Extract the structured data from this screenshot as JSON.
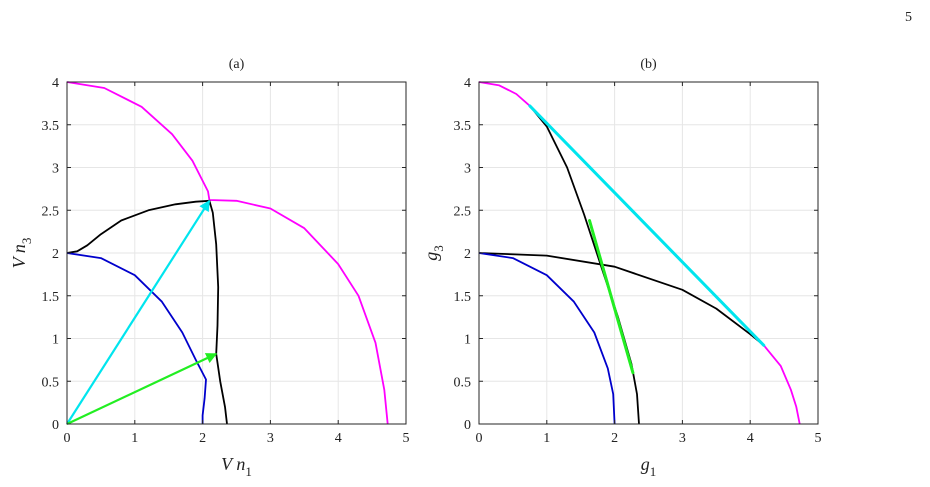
{
  "page_number": "5",
  "colors": {
    "magenta": "#ff00ff",
    "black": "#000000",
    "blue": "#0000cc",
    "cyan": "#00e5ee",
    "green": "#22ee22",
    "grid": "#e6e6e6"
  },
  "chart_data": [
    {
      "type": "line",
      "title": "(a)",
      "xlabel": {
        "main": "V n",
        "sub": "1"
      },
      "ylabel": {
        "main": "V n",
        "sub": "3"
      },
      "xlim": [
        0,
        5
      ],
      "ylim": [
        0,
        4
      ],
      "xticks": [
        0,
        1,
        2,
        3,
        4,
        5
      ],
      "yticks": [
        0,
        0.5,
        1,
        1.5,
        2,
        2.5,
        3,
        3.5,
        4
      ],
      "grid": true,
      "series": [
        {
          "color": "magenta",
          "points": [
            [
              0,
              4
            ],
            [
              0.55,
              3.93
            ],
            [
              1.1,
              3.71
            ],
            [
              1.55,
              3.39
            ],
            [
              1.85,
              3.08
            ],
            [
              2.08,
              2.72
            ],
            [
              2.1,
              2.62
            ],
            [
              2.5,
              2.61
            ],
            [
              3.0,
              2.52
            ],
            [
              3.5,
              2.29
            ],
            [
              4.0,
              1.87
            ],
            [
              4.3,
              1.5
            ],
            [
              4.55,
              0.95
            ],
            [
              4.68,
              0.4
            ],
            [
              4.73,
              0
            ]
          ]
        },
        {
          "color": "black",
          "points": [
            [
              0,
              2
            ],
            [
              0.15,
              2.02
            ],
            [
              0.3,
              2.09
            ],
            [
              0.5,
              2.22
            ],
            [
              0.8,
              2.38
            ],
            [
              1.2,
              2.5
            ],
            [
              1.6,
              2.57
            ],
            [
              1.9,
              2.6
            ],
            [
              2.1,
              2.61
            ],
            [
              2.15,
              2.47
            ],
            [
              2.2,
              2.1
            ],
            [
              2.23,
              1.6
            ],
            [
              2.22,
              1.15
            ],
            [
              2.2,
              0.82
            ],
            [
              2.26,
              0.5
            ],
            [
              2.33,
              0.2
            ],
            [
              2.36,
              0
            ]
          ]
        },
        {
          "color": "blue",
          "points": [
            [
              0,
              2
            ],
            [
              0.5,
              1.94
            ],
            [
              1.0,
              1.74
            ],
            [
              1.4,
              1.43
            ],
            [
              1.7,
              1.07
            ],
            [
              1.9,
              0.75
            ],
            [
              2.05,
              0.52
            ],
            [
              2.03,
              0.3
            ],
            [
              2.0,
              0.1
            ],
            [
              2.0,
              0
            ]
          ]
        }
      ],
      "arrows": [
        {
          "color": "cyan",
          "from": [
            0,
            0
          ],
          "to": [
            2.1,
            2.61
          ]
        },
        {
          "color": "green",
          "from": [
            0,
            0
          ],
          "to": [
            2.2,
            0.82
          ]
        }
      ]
    },
    {
      "type": "line",
      "title": "(b)",
      "xlabel": {
        "main": "g",
        "sub": "1"
      },
      "ylabel": {
        "main": "g",
        "sub": "3"
      },
      "xlim": [
        0,
        5
      ],
      "ylim": [
        0,
        4
      ],
      "xticks": [
        0,
        1,
        2,
        3,
        4,
        5
      ],
      "yticks": [
        0,
        0.5,
        1,
        1.5,
        2,
        2.5,
        3,
        3.5,
        4
      ],
      "grid": true,
      "series": [
        {
          "color": "magenta",
          "points": [
            [
              0,
              4
            ],
            [
              0.3,
              3.96
            ],
            [
              0.55,
              3.86
            ],
            [
              0.75,
              3.72
            ]
          ]
        },
        {
          "color": "magenta",
          "points": [
            [
              4.2,
              0.92
            ],
            [
              4.45,
              0.68
            ],
            [
              4.6,
              0.4
            ],
            [
              4.68,
              0.2
            ],
            [
              4.73,
              0
            ]
          ]
        },
        {
          "color": "black",
          "points": [
            [
              0.75,
              3.72
            ],
            [
              1.0,
              3.48
            ],
            [
              1.3,
              3.0
            ],
            [
              1.55,
              2.45
            ],
            [
              1.8,
              1.85
            ],
            [
              2.05,
              1.25
            ],
            [
              2.25,
              0.7
            ],
            [
              2.33,
              0.35
            ],
            [
              2.36,
              0
            ]
          ]
        },
        {
          "color": "black",
          "points": [
            [
              0,
              2
            ],
            [
              1.0,
              1.97
            ],
            [
              2.0,
              1.84
            ],
            [
              3.0,
              1.57
            ],
            [
              3.5,
              1.35
            ],
            [
              4.0,
              1.05
            ],
            [
              4.2,
              0.92
            ]
          ]
        },
        {
          "color": "blue",
          "points": [
            [
              0,
              2
            ],
            [
              0.5,
              1.94
            ],
            [
              1.0,
              1.74
            ],
            [
              1.4,
              1.43
            ],
            [
              1.7,
              1.07
            ],
            [
              1.9,
              0.65
            ],
            [
              1.98,
              0.35
            ],
            [
              2.0,
              0
            ]
          ]
        }
      ],
      "segments": [
        {
          "color": "cyan",
          "from": [
            0.75,
            3.72
          ],
          "to": [
            4.2,
            0.92
          ]
        },
        {
          "color": "green",
          "from": [
            1.63,
            2.38
          ],
          "to": [
            2.27,
            0.6
          ]
        }
      ]
    }
  ]
}
